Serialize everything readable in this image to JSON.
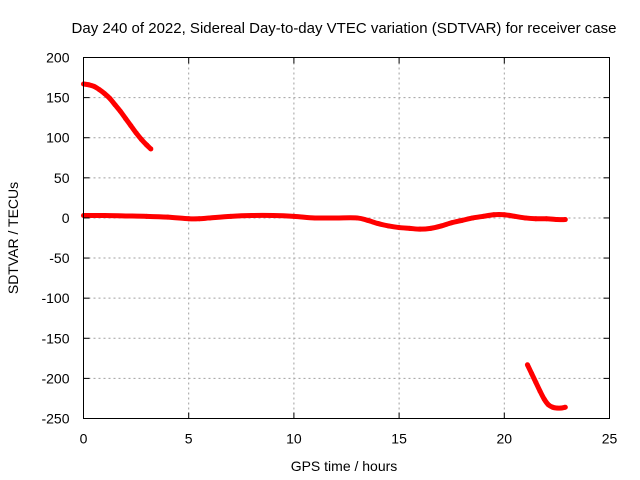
{
  "chart_data": {
    "type": "line",
    "title": "Day 240 of 2022, Sidereal Day-to-day VTEC variation (SDTVAR) for receiver case",
    "xlabel": "GPS time / hours",
    "ylabel": "SDTVAR / TECUs",
    "xlim": [
      0,
      25
    ],
    "ylim": [
      -250,
      200
    ],
    "xticks": [
      0,
      5,
      10,
      15,
      20,
      25
    ],
    "yticks": [
      200,
      150,
      100,
      50,
      0,
      -50,
      -100,
      -150,
      -200,
      -250
    ],
    "xtick_labels": [
      "0",
      "5",
      "10",
      "15",
      "20",
      "25"
    ],
    "ytick_labels": [
      "200",
      "150",
      "100",
      "50",
      "0",
      "-50",
      "-100",
      "-150",
      "-200",
      "-250"
    ],
    "grid": true,
    "legend": "none",
    "series_color": "#ff0000",
    "series": [
      {
        "name": "segment-1",
        "x": [
          0.0,
          0.25,
          0.5,
          0.75,
          1.0,
          1.25,
          1.5,
          1.75,
          2.0,
          2.25,
          2.5,
          2.75,
          3.0,
          3.2
        ],
        "y": [
          167,
          166,
          164,
          160,
          155,
          149,
          141,
          133,
          124,
          115,
          106,
          98,
          91,
          86
        ]
      },
      {
        "name": "segment-2",
        "x": [
          0,
          1,
          2,
          3,
          4,
          5,
          5.5,
          6,
          7,
          8,
          9,
          10,
          11,
          12,
          13,
          13.5,
          14,
          14.5,
          15,
          15.5,
          16,
          16.5,
          17,
          17.5,
          18,
          18.5,
          19,
          19.5,
          20,
          20.5,
          21,
          21.5,
          22,
          22.5,
          22.9
        ],
        "y": [
          3,
          3,
          2.5,
          2,
          1,
          -1,
          -1,
          0,
          2,
          3,
          3,
          2,
          0,
          0,
          0,
          -3,
          -7,
          -10,
          -12,
          -13,
          -14,
          -13,
          -10,
          -6,
          -3,
          0,
          2,
          4,
          4,
          2,
          0,
          -1,
          -1,
          -2,
          -2
        ]
      },
      {
        "name": "segment-3",
        "x": [
          21.1,
          21.3,
          21.5,
          21.7,
          21.9,
          22.1,
          22.3,
          22.5,
          22.7,
          22.9
        ],
        "y": [
          -183,
          -194,
          -205,
          -216,
          -226,
          -233,
          -236,
          -237,
          -237,
          -236
        ]
      }
    ]
  }
}
